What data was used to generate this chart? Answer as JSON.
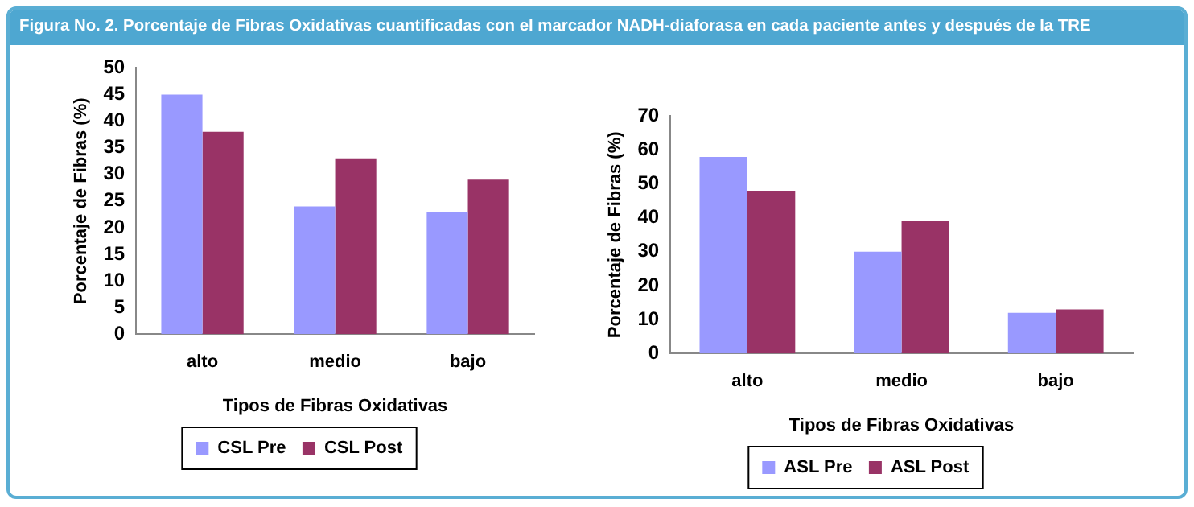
{
  "chart_data": [
    {
      "type": "bar",
      "title": "Figura No. 2. Porcentaje de Fibras Oxidativas cuantificadas con el marcador NADH-diaforasa en cada paciente antes y después de la TRE",
      "xlabel": "Tipos de Fibras Oxidativas",
      "ylabel": "Porcentaje de Fibras (%)",
      "categories": [
        "alto",
        "medio",
        "bajo"
      ],
      "series": [
        {
          "name": "CSL Pre",
          "color": "#9999ff",
          "values": [
            45,
            24,
            23
          ]
        },
        {
          "name": "CSL Post",
          "color": "#993366",
          "values": [
            38,
            33,
            29
          ]
        }
      ],
      "ylim": [
        0,
        50
      ],
      "yticks": [
        0,
        5,
        10,
        15,
        20,
        25,
        30,
        35,
        40,
        45,
        50
      ],
      "grid": false,
      "legend": "bottom"
    },
    {
      "type": "bar",
      "xlabel": "Tipos de Fibras Oxidativas",
      "ylabel": "Porcentaje de Fibras (%)",
      "categories": [
        "alto",
        "medio",
        "bajo"
      ],
      "series": [
        {
          "name": "ASL Pre",
          "color": "#9999ff",
          "values": [
            58,
            30,
            12
          ]
        },
        {
          "name": "ASL Post",
          "color": "#993366",
          "values": [
            48,
            39,
            13
          ]
        }
      ],
      "ylim": [
        0,
        70
      ],
      "yticks": [
        0,
        10,
        20,
        30,
        40,
        50,
        60,
        70
      ],
      "grid": false,
      "legend": "bottom"
    }
  ]
}
